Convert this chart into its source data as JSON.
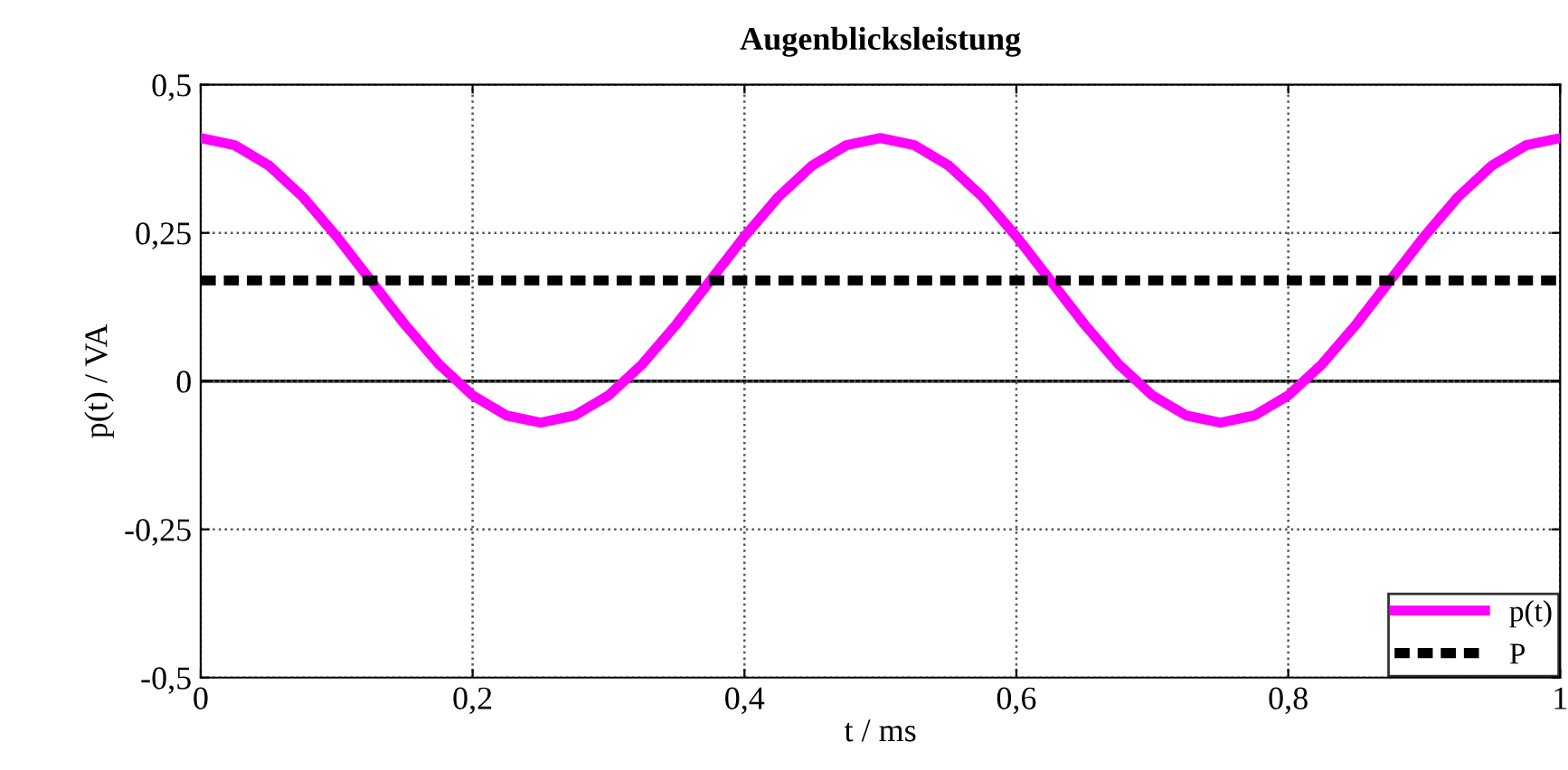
{
  "chart_data": {
    "type": "line",
    "title": "Augenblicksleistung",
    "xlabel": "t / ms",
    "ylabel": "p(t) / VA",
    "xlim": [
      0,
      1
    ],
    "ylim": [
      -0.5,
      0.5
    ],
    "xticks": [
      0,
      {
        "value": 0.2,
        "label": "0,2"
      },
      {
        "value": 0.4,
        "label": "0,4"
      },
      {
        "value": 0.6,
        "label": "0,6"
      },
      {
        "value": 0.8,
        "label": "0,8"
      },
      1
    ],
    "yticks": [
      {
        "value": -0.5,
        "label": "-0,5"
      },
      {
        "value": -0.25,
        "label": "-0,25"
      },
      0,
      {
        "value": 0.25,
        "label": "0,25"
      },
      {
        "value": 0.5,
        "label": "0,5"
      }
    ],
    "grid": true,
    "legend": "bottom right",
    "ref_lines": [
      {
        "axis": "y",
        "value": 0,
        "color": "#000000",
        "line_style": "solid"
      }
    ],
    "series": [
      {
        "name": "p(t)",
        "color": "#ff00ff",
        "line_style": "solid",
        "x": [
          0,
          0.025,
          0.05,
          0.075,
          0.1,
          0.125,
          0.15,
          0.175,
          0.2,
          0.225,
          0.25,
          0.275,
          0.3,
          0.325,
          0.35,
          0.375,
          0.4,
          0.425,
          0.45,
          0.475,
          0.5,
          0.525,
          0.55,
          0.575,
          0.6,
          0.625,
          0.65,
          0.675,
          0.7,
          0.725,
          0.75,
          0.775,
          0.8,
          0.825,
          0.85,
          0.875,
          0.9,
          0.925,
          0.95,
          0.975,
          1
        ],
        "values": [
          0.41,
          0.398,
          0.364,
          0.311,
          0.244,
          0.17,
          0.096,
          0.029,
          -0.024,
          -0.058,
          -0.07,
          -0.058,
          -0.024,
          0.029,
          0.096,
          0.17,
          0.244,
          0.311,
          0.364,
          0.398,
          0.41,
          0.398,
          0.364,
          0.311,
          0.244,
          0.17,
          0.096,
          0.029,
          -0.024,
          -0.058,
          -0.07,
          -0.058,
          -0.024,
          0.029,
          0.096,
          0.17,
          0.244,
          0.311,
          0.364,
          0.398,
          0.41
        ]
      },
      {
        "name": "P",
        "color": "#000000",
        "line_style": "dashed",
        "x": [
          0,
          1
        ],
        "values": [
          0.17,
          0.17
        ]
      }
    ]
  }
}
